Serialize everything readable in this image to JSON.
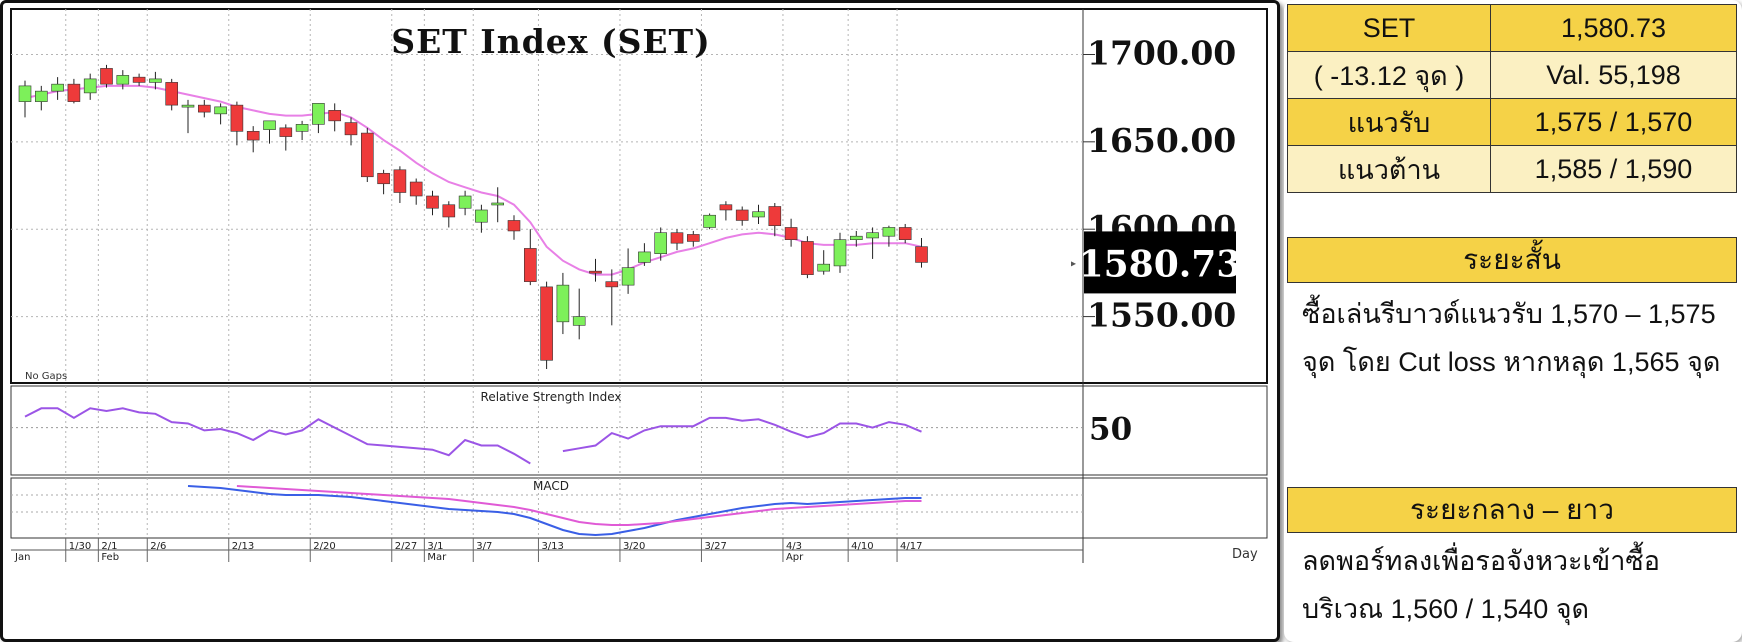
{
  "chart_data": [
    {
      "type": "candlestick",
      "title": "SET Index (SET)",
      "y_ticks": [
        "1700.00",
        "1650.00",
        "1600.00",
        "1550.00"
      ],
      "y_tick_values": [
        1700,
        1650,
        1600,
        1550
      ],
      "ylim": [
        1512,
        1726
      ],
      "last_value_label": "1580.73",
      "note": "No Gaps",
      "overlay_line": "moving average (magenta)",
      "colors": {
        "up": "#7df05a",
        "down": "#ee3a3a",
        "ma": "#e880e6",
        "last_badge": "#000000"
      },
      "candles": [
        {
          "o": 1673,
          "h": 1685,
          "l": 1664,
          "c": 1682
        },
        {
          "o": 1673,
          "h": 1682,
          "l": 1668,
          "c": 1679
        },
        {
          "o": 1679,
          "h": 1687,
          "l": 1674,
          "c": 1683
        },
        {
          "o": 1683,
          "h": 1686,
          "l": 1672,
          "c": 1673
        },
        {
          "o": 1678,
          "h": 1689,
          "l": 1674,
          "c": 1686
        },
        {
          "o": 1692,
          "h": 1694,
          "l": 1681,
          "c": 1683
        },
        {
          "o": 1683,
          "h": 1691,
          "l": 1680,
          "c": 1688
        },
        {
          "o": 1687,
          "h": 1689,
          "l": 1682,
          "c": 1684
        },
        {
          "o": 1684,
          "h": 1690,
          "l": 1680,
          "c": 1686
        },
        {
          "o": 1684,
          "h": 1686,
          "l": 1668,
          "c": 1671
        },
        {
          "o": 1671,
          "h": 1674,
          "l": 1655,
          "c": 1671
        },
        {
          "o": 1671,
          "h": 1674,
          "l": 1664,
          "c": 1667
        },
        {
          "o": 1666,
          "h": 1672,
          "l": 1660,
          "c": 1670
        },
        {
          "o": 1671,
          "h": 1673,
          "l": 1648,
          "c": 1656
        },
        {
          "o": 1656,
          "h": 1659,
          "l": 1644,
          "c": 1651
        },
        {
          "o": 1657,
          "h": 1661,
          "l": 1649,
          "c": 1662
        },
        {
          "o": 1658,
          "h": 1660,
          "l": 1645,
          "c": 1653
        },
        {
          "o": 1656,
          "h": 1662,
          "l": 1651,
          "c": 1660
        },
        {
          "o": 1660,
          "h": 1672,
          "l": 1655,
          "c": 1672
        },
        {
          "o": 1668,
          "h": 1672,
          "l": 1656,
          "c": 1662
        },
        {
          "o": 1661,
          "h": 1664,
          "l": 1648,
          "c": 1654
        },
        {
          "o": 1655,
          "h": 1658,
          "l": 1627,
          "c": 1630
        },
        {
          "o": 1632,
          "h": 1634,
          "l": 1620,
          "c": 1626
        },
        {
          "o": 1634,
          "h": 1636,
          "l": 1615,
          "c": 1621
        },
        {
          "o": 1627,
          "h": 1629,
          "l": 1614,
          "c": 1619
        },
        {
          "o": 1619,
          "h": 1622,
          "l": 1608,
          "c": 1612
        },
        {
          "o": 1614,
          "h": 1616,
          "l": 1601,
          "c": 1607
        },
        {
          "o": 1612,
          "h": 1622,
          "l": 1608,
          "c": 1619
        },
        {
          "o": 1604,
          "h": 1614,
          "l": 1598,
          "c": 1611
        },
        {
          "o": 1615,
          "h": 1624,
          "l": 1604,
          "c": 1615
        },
        {
          "o": 1605,
          "h": 1608,
          "l": 1594,
          "c": 1599
        },
        {
          "o": 1589,
          "h": 1600,
          "l": 1568,
          "c": 1570
        },
        {
          "o": 1567,
          "h": 1570,
          "l": 1520,
          "c": 1525
        },
        {
          "o": 1547,
          "h": 1575,
          "l": 1540,
          "c": 1568
        },
        {
          "o": 1545,
          "h": 1566,
          "l": 1537,
          "c": 1550
        },
        {
          "o": 1576,
          "h": 1583,
          "l": 1570,
          "c": 1575
        },
        {
          "o": 1570,
          "h": 1577,
          "l": 1545,
          "c": 1567
        },
        {
          "o": 1568,
          "h": 1589,
          "l": 1563,
          "c": 1578
        },
        {
          "o": 1581,
          "h": 1592,
          "l": 1579,
          "c": 1587
        },
        {
          "o": 1586,
          "h": 1601,
          "l": 1582,
          "c": 1598
        },
        {
          "o": 1598,
          "h": 1600,
          "l": 1588,
          "c": 1592
        },
        {
          "o": 1597,
          "h": 1599,
          "l": 1590,
          "c": 1593
        },
        {
          "o": 1601,
          "h": 1609,
          "l": 1600,
          "c": 1608
        },
        {
          "o": 1614,
          "h": 1616,
          "l": 1605,
          "c": 1611
        },
        {
          "o": 1611,
          "h": 1613,
          "l": 1602,
          "c": 1605
        },
        {
          "o": 1607,
          "h": 1614,
          "l": 1603,
          "c": 1610
        },
        {
          "o": 1613,
          "h": 1615,
          "l": 1596,
          "c": 1602
        },
        {
          "o": 1601,
          "h": 1606,
          "l": 1590,
          "c": 1594
        },
        {
          "o": 1593,
          "h": 1596,
          "l": 1572,
          "c": 1574
        },
        {
          "o": 1576,
          "h": 1588,
          "l": 1574,
          "c": 1580
        },
        {
          "o": 1579,
          "h": 1598,
          "l": 1575,
          "c": 1594
        },
        {
          "o": 1594,
          "h": 1599,
          "l": 1590,
          "c": 1596
        },
        {
          "o": 1595,
          "h": 1601,
          "l": 1583,
          "c": 1598
        },
        {
          "o": 1596,
          "h": 1602,
          "l": 1590,
          "c": 1601
        },
        {
          "o": 1601,
          "h": 1603,
          "l": 1592,
          "c": 1594
        },
        {
          "o": 1590,
          "h": 1595,
          "l": 1578,
          "c": 1581
        }
      ],
      "ma": [
        1675,
        1677,
        1679,
        1680,
        1681,
        1682,
        1682,
        1682,
        1681,
        1679,
        1677,
        1675,
        1673,
        1670,
        1668,
        1666,
        1665,
        1665,
        1666,
        1667,
        1664,
        1658,
        1651,
        1645,
        1638,
        1632,
        1627,
        1624,
        1621,
        1619,
        1614,
        1604,
        1590,
        1582,
        1577,
        1574,
        1574,
        1577,
        1581,
        1584,
        1587,
        1589,
        1592,
        1595,
        1597,
        1598,
        1597,
        1595,
        1592,
        1591,
        1591,
        1591,
        1592,
        1592,
        1592,
        1590
      ]
    },
    {
      "type": "line",
      "title": "Relative Strength Index",
      "y_tick": "50",
      "color": "#9b55e6",
      "values": [
        58,
        64,
        64,
        57,
        64,
        62,
        64,
        61,
        60,
        54,
        53,
        48,
        49,
        46,
        41,
        48,
        45,
        48,
        56,
        50,
        44,
        38,
        37,
        36,
        35,
        34,
        30,
        41,
        37,
        37,
        31,
        24,
        null,
        33,
        35,
        37,
        46,
        42,
        48,
        51,
        51,
        51,
        57,
        57,
        55,
        56,
        52,
        47,
        43,
        46,
        53,
        53,
        50,
        54,
        52,
        47
      ]
    },
    {
      "type": "line",
      "title": "MACD",
      "series": [
        {
          "color": "#3a5fe6",
          "values": [
            null,
            null,
            null,
            null,
            null,
            null,
            null,
            null,
            null,
            null,
            25.0,
            24.5,
            24.0,
            23.0,
            22.0,
            21.0,
            20.5,
            20.5,
            20.5,
            20.0,
            19.5,
            18.5,
            17.5,
            16.5,
            15.5,
            14.5,
            13.5,
            13.0,
            12.5,
            12.0,
            11.0,
            9.0,
            6.0,
            3.0,
            1.0,
            0.5,
            1.0,
            2.5,
            4.0,
            6.0,
            8.0,
            9.5,
            11.0,
            12.5,
            14.0,
            15.0,
            16.0,
            16.5,
            16.0,
            16.5,
            17.0,
            17.5,
            18.0,
            18.5,
            19.0,
            19.0
          ]
        },
        {
          "color": "#e05ad6",
          "values": [
            null,
            null,
            null,
            null,
            null,
            null,
            null,
            null,
            null,
            null,
            null,
            null,
            null,
            25.0,
            24.5,
            24.0,
            23.5,
            23.0,
            22.5,
            22.0,
            21.5,
            21.0,
            20.5,
            20.0,
            19.5,
            19.0,
            18.5,
            17.5,
            16.5,
            15.5,
            14.5,
            13.0,
            11.0,
            9.0,
            7.0,
            6.0,
            5.5,
            5.5,
            6.0,
            6.5,
            7.5,
            8.5,
            9.5,
            10.5,
            11.5,
            12.5,
            13.5,
            14.0,
            14.5,
            15.0,
            15.5,
            16.0,
            16.5,
            17.0,
            17.5,
            17.5
          ]
        }
      ]
    }
  ],
  "x_axis": {
    "ticks": [
      {
        "label": "1/30",
        "i": 3
      },
      {
        "label": "2/1",
        "i": 5
      },
      {
        "label": "2/6",
        "i": 8
      },
      {
        "label": "2/13",
        "i": 13
      },
      {
        "label": "2/20",
        "i": 18
      },
      {
        "label": "2/27",
        "i": 23
      },
      {
        "label": "3/1",
        "i": 25
      },
      {
        "label": "3/7",
        "i": 28
      },
      {
        "label": "3/13",
        "i": 32
      },
      {
        "label": "3/20",
        "i": 37
      },
      {
        "label": "3/27",
        "i": 42
      },
      {
        "label": "4/3",
        "i": 47
      },
      {
        "label": "4/10",
        "i": 51
      },
      {
        "label": "4/17",
        "i": 54
      }
    ],
    "months": [
      {
        "label": "Jan",
        "i": 0
      },
      {
        "label": "Feb",
        "i": 5
      },
      {
        "label": "Mar",
        "i": 25
      },
      {
        "label": "Apr",
        "i": 47
      }
    ],
    "period": "Day"
  },
  "summary": {
    "rows": [
      [
        "SET",
        "1,580.73"
      ],
      [
        "( -13.12 จุด )",
        "Val. 55,198"
      ],
      [
        "แนวรับ",
        "1,575 / 1,570"
      ],
      [
        "แนวต้าน",
        "1,585 / 1,590"
      ]
    ]
  },
  "short_term": {
    "heading": "ระยะสั้น",
    "line1": "ซื้อเล่นรีบาวด์แนวรับ 1,570 – 1,575",
    "line2": "จุด โดย Cut loss หากหลุด 1,565 จุด"
  },
  "long_term": {
    "heading": "ระยะกลาง – ยาว",
    "line1": "ลดพอร์ทลงเพื่อรอจังหวะเข้าซื้อ",
    "line2": "บริเวณ 1,560 / 1,540 จุด"
  }
}
